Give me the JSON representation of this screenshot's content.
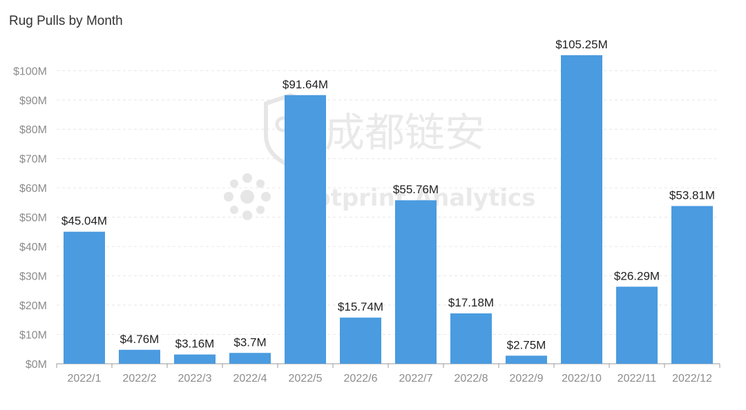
{
  "title": "Rug Pulls by Month",
  "watermark": {
    "chinese": "成都链安",
    "english": "Footprint Analytics"
  },
  "colors": {
    "bar": "#4a9be0",
    "grid": "#e6e6e6",
    "axis": "#999999",
    "tick": "#8c8c8c",
    "label": "#1f1f1f"
  },
  "chart_data": {
    "type": "bar",
    "title": "Rug Pulls by Month",
    "categories": [
      "2022/1",
      "2022/2",
      "2022/3",
      "2022/4",
      "2022/5",
      "2022/6",
      "2022/7",
      "2022/8",
      "2022/9",
      "2022/10",
      "2022/11",
      "2022/12"
    ],
    "values": [
      45.04,
      4.76,
      3.16,
      3.7,
      91.64,
      15.74,
      55.76,
      17.18,
      2.75,
      105.25,
      26.29,
      53.81
    ],
    "data_labels": [
      "$45.04M",
      "$4.76M",
      "$3.16M",
      "$3.7M",
      "$91.64M",
      "$15.74M",
      "$55.76M",
      "$17.18M",
      "$2.75M",
      "$105.25M",
      "$26.29M",
      "$53.81M"
    ],
    "y_ticks": [
      0,
      10,
      20,
      30,
      40,
      50,
      60,
      70,
      80,
      90,
      100
    ],
    "y_tick_labels": [
      "$0M",
      "$10M",
      "$20M",
      "$30M",
      "$40M",
      "$50M",
      "$60M",
      "$70M",
      "$80M",
      "$90M",
      "$100M"
    ],
    "ylim": [
      0,
      105.25
    ],
    "xlabel": "",
    "ylabel": "",
    "grid": true,
    "legend": false
  }
}
